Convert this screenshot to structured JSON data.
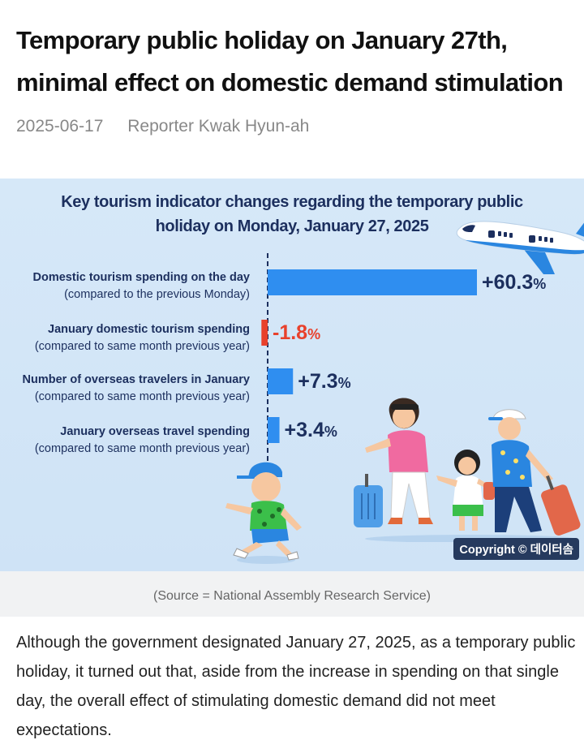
{
  "article": {
    "headline": "Temporary public holiday on January 27th, minimal effect on domestic demand stimulation",
    "date": "2025-06-17",
    "reporter": "Reporter Kwak Hyun-ah",
    "source": "(Source = National Assembly Research Service)",
    "body": "Although the government designated January 27, 2025, as a temporary public holiday, it turned out that, aside from the increase in spending on that single day, the overall effect of stimulating domestic demand did not meet expectations."
  },
  "infographic": {
    "title_line1": "Key tourism indicator changes regarding the temporary public",
    "title_line2": "holiday on Monday, January 27, 2025",
    "copyright": "Copyright © 데이터솜",
    "colors": {
      "positive": "#2f8ef0",
      "negative": "#e8412c",
      "positive_text": "#1c2f5e",
      "negative_text": "#e8412c",
      "background": "#d3e6f7"
    },
    "illustrations": [
      "airplane-icon",
      "running-child-icon",
      "family-with-luggage-icon"
    ]
  },
  "chart_data": {
    "type": "bar",
    "orientation": "horizontal",
    "title": "Key tourism indicator changes regarding the temporary public holiday on Monday, January 27, 2025",
    "categories": [
      {
        "main": "Domestic tourism spending on the day",
        "sub": "(compared to the previous Monday)"
      },
      {
        "main": "January domestic tourism spending",
        "sub": "(compared to same month previous year)"
      },
      {
        "main": "Number of overseas travelers in January",
        "sub": "(compared to same month previous year)"
      },
      {
        "main": "January overseas travel spending",
        "sub": "(compared to same month previous year)"
      }
    ],
    "values": [
      60.3,
      -1.8,
      7.3,
      3.4
    ],
    "labels": [
      "+60.3",
      "-1.8",
      "+7.3",
      "+3.4"
    ],
    "unit": "%"
  }
}
